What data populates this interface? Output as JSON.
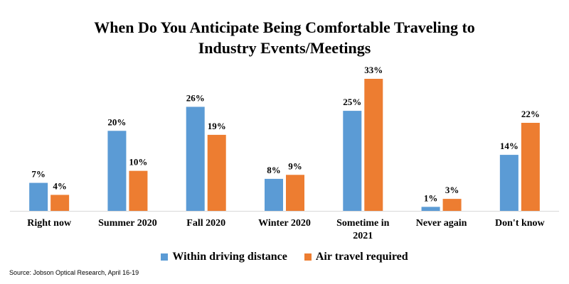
{
  "chart_data": {
    "type": "bar",
    "title_line1": "When Do You Anticipate Being Comfortable Traveling to",
    "title_line2": "Industry Events/Meetings",
    "categories": [
      "Right now",
      "Summer 2020",
      "Fall 2020",
      "Winter 2020",
      "Sometime in 2021",
      "Never again",
      "Don't know"
    ],
    "series": [
      {
        "name": "Within driving distance",
        "values": [
          7,
          20,
          26,
          8,
          25,
          1,
          14
        ],
        "labels": [
          "7%",
          "20%",
          "26%",
          "8%",
          "25%",
          "1%",
          "14%"
        ],
        "color": "#5b9bd5"
      },
      {
        "name": "Air travel required",
        "values": [
          4,
          10,
          19,
          9,
          33,
          3,
          22
        ],
        "labels": [
          "4%",
          "10%",
          "19%",
          "9%",
          "33%",
          "3%",
          "22%"
        ],
        "color": "#ed7d31"
      }
    ],
    "ylim": [
      0,
      33
    ],
    "grid": false,
    "legend_position": "bottom"
  },
  "source": {
    "label": "Source: Jobson Optical Research",
    "date": ", April 16-19"
  }
}
